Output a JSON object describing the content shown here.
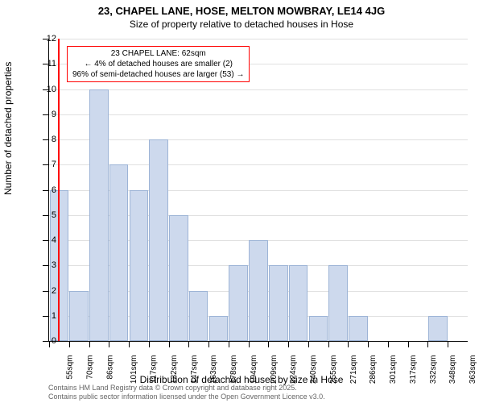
{
  "chart": {
    "type": "histogram",
    "title": "23, CHAPEL LANE, HOSE, MELTON MOWBRAY, LE14 4JG",
    "subtitle": "Size of property relative to detached houses in Hose",
    "y_axis_title": "Number of detached properties",
    "x_axis_title": "Distribution of detached houses by size in Hose",
    "background_color": "#ffffff",
    "grid_color": "#e0e0e0",
    "bar_fill_color": "#cdd9ed",
    "bar_border_color": "#9db4d6",
    "reference_line_color": "#ff0000",
    "annotation_border_color": "#ff0000",
    "title_fontsize": 13,
    "subtitle_fontsize": 12,
    "axis_title_fontsize": 12,
    "tick_fontsize": 11,
    "x_tick_fontsize": 10,
    "annotation_fontsize": 10,
    "footer_fontsize": 9,
    "footer_color": "#666666",
    "ylim": [
      0,
      12
    ],
    "ytick_step": 1,
    "x_categories": [
      "55sqm",
      "70sqm",
      "86sqm",
      "101sqm",
      "117sqm",
      "132sqm",
      "147sqm",
      "163sqm",
      "178sqm",
      "194sqm",
      "209sqm",
      "224sqm",
      "240sqm",
      "255sqm",
      "271sqm",
      "286sqm",
      "301sqm",
      "317sqm",
      "332sqm",
      "348sqm",
      "363sqm"
    ],
    "bar_values": [
      6,
      2,
      10,
      7,
      6,
      8,
      5,
      2,
      1,
      3,
      4,
      3,
      3,
      1,
      3,
      1,
      0,
      0,
      0,
      1,
      0
    ],
    "reference_value_sqm": 62,
    "reference_bin_index": 0.45,
    "annotation": {
      "line1": "23 CHAPEL LANE: 62sqm",
      "line2": "← 4% of detached houses are smaller (2)",
      "line3": "96% of semi-detached houses are larger (53) →"
    },
    "footer_line1": "Contains HM Land Registry data © Crown copyright and database right 2025.",
    "footer_line2": "Contains public sector information licensed under the Open Government Licence v3.0."
  }
}
